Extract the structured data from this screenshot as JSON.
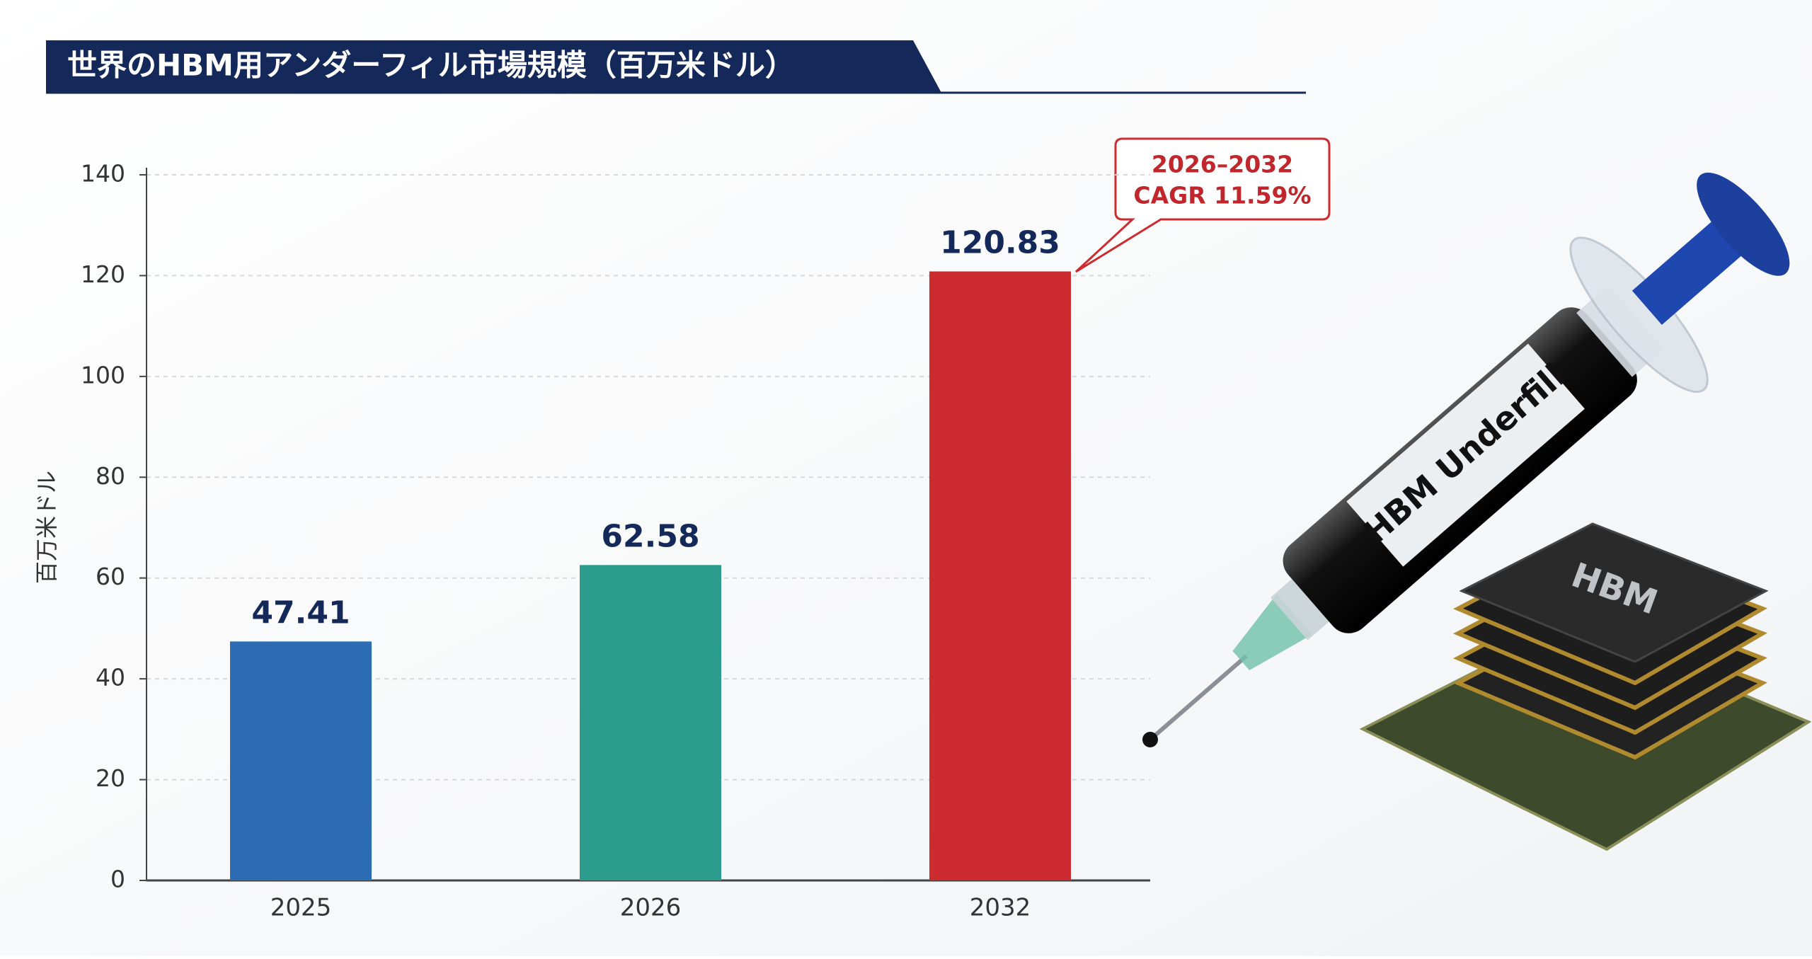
{
  "chart_data": {
    "type": "bar",
    "title": "世界のHBM用アンダーフィル市場規模（百万米ドル）",
    "y_label": "百万米ドル",
    "categories": [
      "2025",
      "2026",
      "2032"
    ],
    "values": [
      47.41,
      62.58,
      120.83
    ],
    "colors": [
      "#2b6cb3",
      "#2a9d8c",
      "#cc2b2f"
    ],
    "ylim": [
      0,
      140
    ],
    "yticks": [
      0,
      20,
      40,
      60,
      80,
      100,
      120,
      140
    ],
    "grid": true,
    "annotations": [
      "2026–2032",
      "CAGR 11.59%"
    ],
    "illustration_labels": [
      "HBM Underfill",
      "HBM"
    ]
  }
}
